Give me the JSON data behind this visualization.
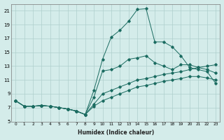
{
  "xlabel": "Humidex (Indice chaleur)",
  "bg_color": "#d4ecea",
  "grid_color": "#aecfcc",
  "line_color": "#1a6b60",
  "xlim": [
    -0.5,
    23.5
  ],
  "ylim": [
    5,
    22
  ],
  "xticks": [
    0,
    1,
    2,
    3,
    4,
    5,
    6,
    7,
    8,
    9,
    10,
    11,
    12,
    13,
    14,
    15,
    16,
    17,
    18,
    19,
    20,
    21,
    22,
    23
  ],
  "yticks": [
    5,
    7,
    9,
    11,
    13,
    15,
    17,
    19,
    21
  ],
  "lines": [
    {
      "x": [
        0,
        1,
        2,
        3,
        4,
        5,
        6,
        7,
        8,
        9,
        10,
        11,
        12,
        13,
        14,
        15,
        16,
        17,
        18,
        19,
        20,
        21,
        22,
        23
      ],
      "y": [
        8.0,
        7.2,
        7.2,
        7.3,
        7.2,
        7.0,
        6.8,
        6.5,
        6.0,
        9.5,
        14.0,
        17.2,
        18.2,
        19.5,
        21.2,
        21.3,
        16.5,
        16.5,
        15.8,
        14.5,
        12.8,
        12.5,
        12.2,
        10.5
      ]
    },
    {
      "x": [
        0,
        1,
        2,
        3,
        4,
        5,
        6,
        7,
        8,
        9,
        10,
        11,
        12,
        13,
        14,
        15,
        16,
        17,
        18,
        19,
        20,
        21,
        22,
        23
      ],
      "y": [
        8.0,
        7.2,
        7.2,
        7.3,
        7.2,
        7.0,
        6.8,
        6.5,
        6.0,
        8.5,
        12.3,
        12.5,
        13.0,
        14.0,
        14.2,
        14.5,
        13.5,
        13.0,
        12.5,
        13.2,
        13.2,
        12.8,
        12.5,
        12.0
      ]
    },
    {
      "x": [
        0,
        1,
        2,
        3,
        4,
        5,
        6,
        7,
        8,
        9,
        10,
        11,
        12,
        13,
        14,
        15,
        16,
        17,
        18,
        19,
        20,
        21,
        22,
        23
      ],
      "y": [
        8.0,
        7.2,
        7.2,
        7.3,
        7.2,
        7.0,
        6.8,
        6.5,
        6.0,
        7.5,
        9.0,
        9.5,
        10.0,
        10.5,
        11.0,
        11.2,
        11.5,
        11.8,
        12.0,
        12.2,
        12.5,
        12.8,
        13.0,
        13.2
      ]
    },
    {
      "x": [
        0,
        1,
        2,
        3,
        4,
        5,
        6,
        7,
        8,
        9,
        10,
        11,
        12,
        13,
        14,
        15,
        16,
        17,
        18,
        19,
        20,
        21,
        22,
        23
      ],
      "y": [
        8.0,
        7.2,
        7.2,
        7.3,
        7.2,
        7.0,
        6.8,
        6.5,
        6.0,
        7.2,
        8.0,
        8.5,
        9.0,
        9.5,
        10.0,
        10.2,
        10.5,
        10.8,
        11.0,
        11.2,
        11.5,
        11.5,
        11.3,
        11.0
      ]
    }
  ]
}
